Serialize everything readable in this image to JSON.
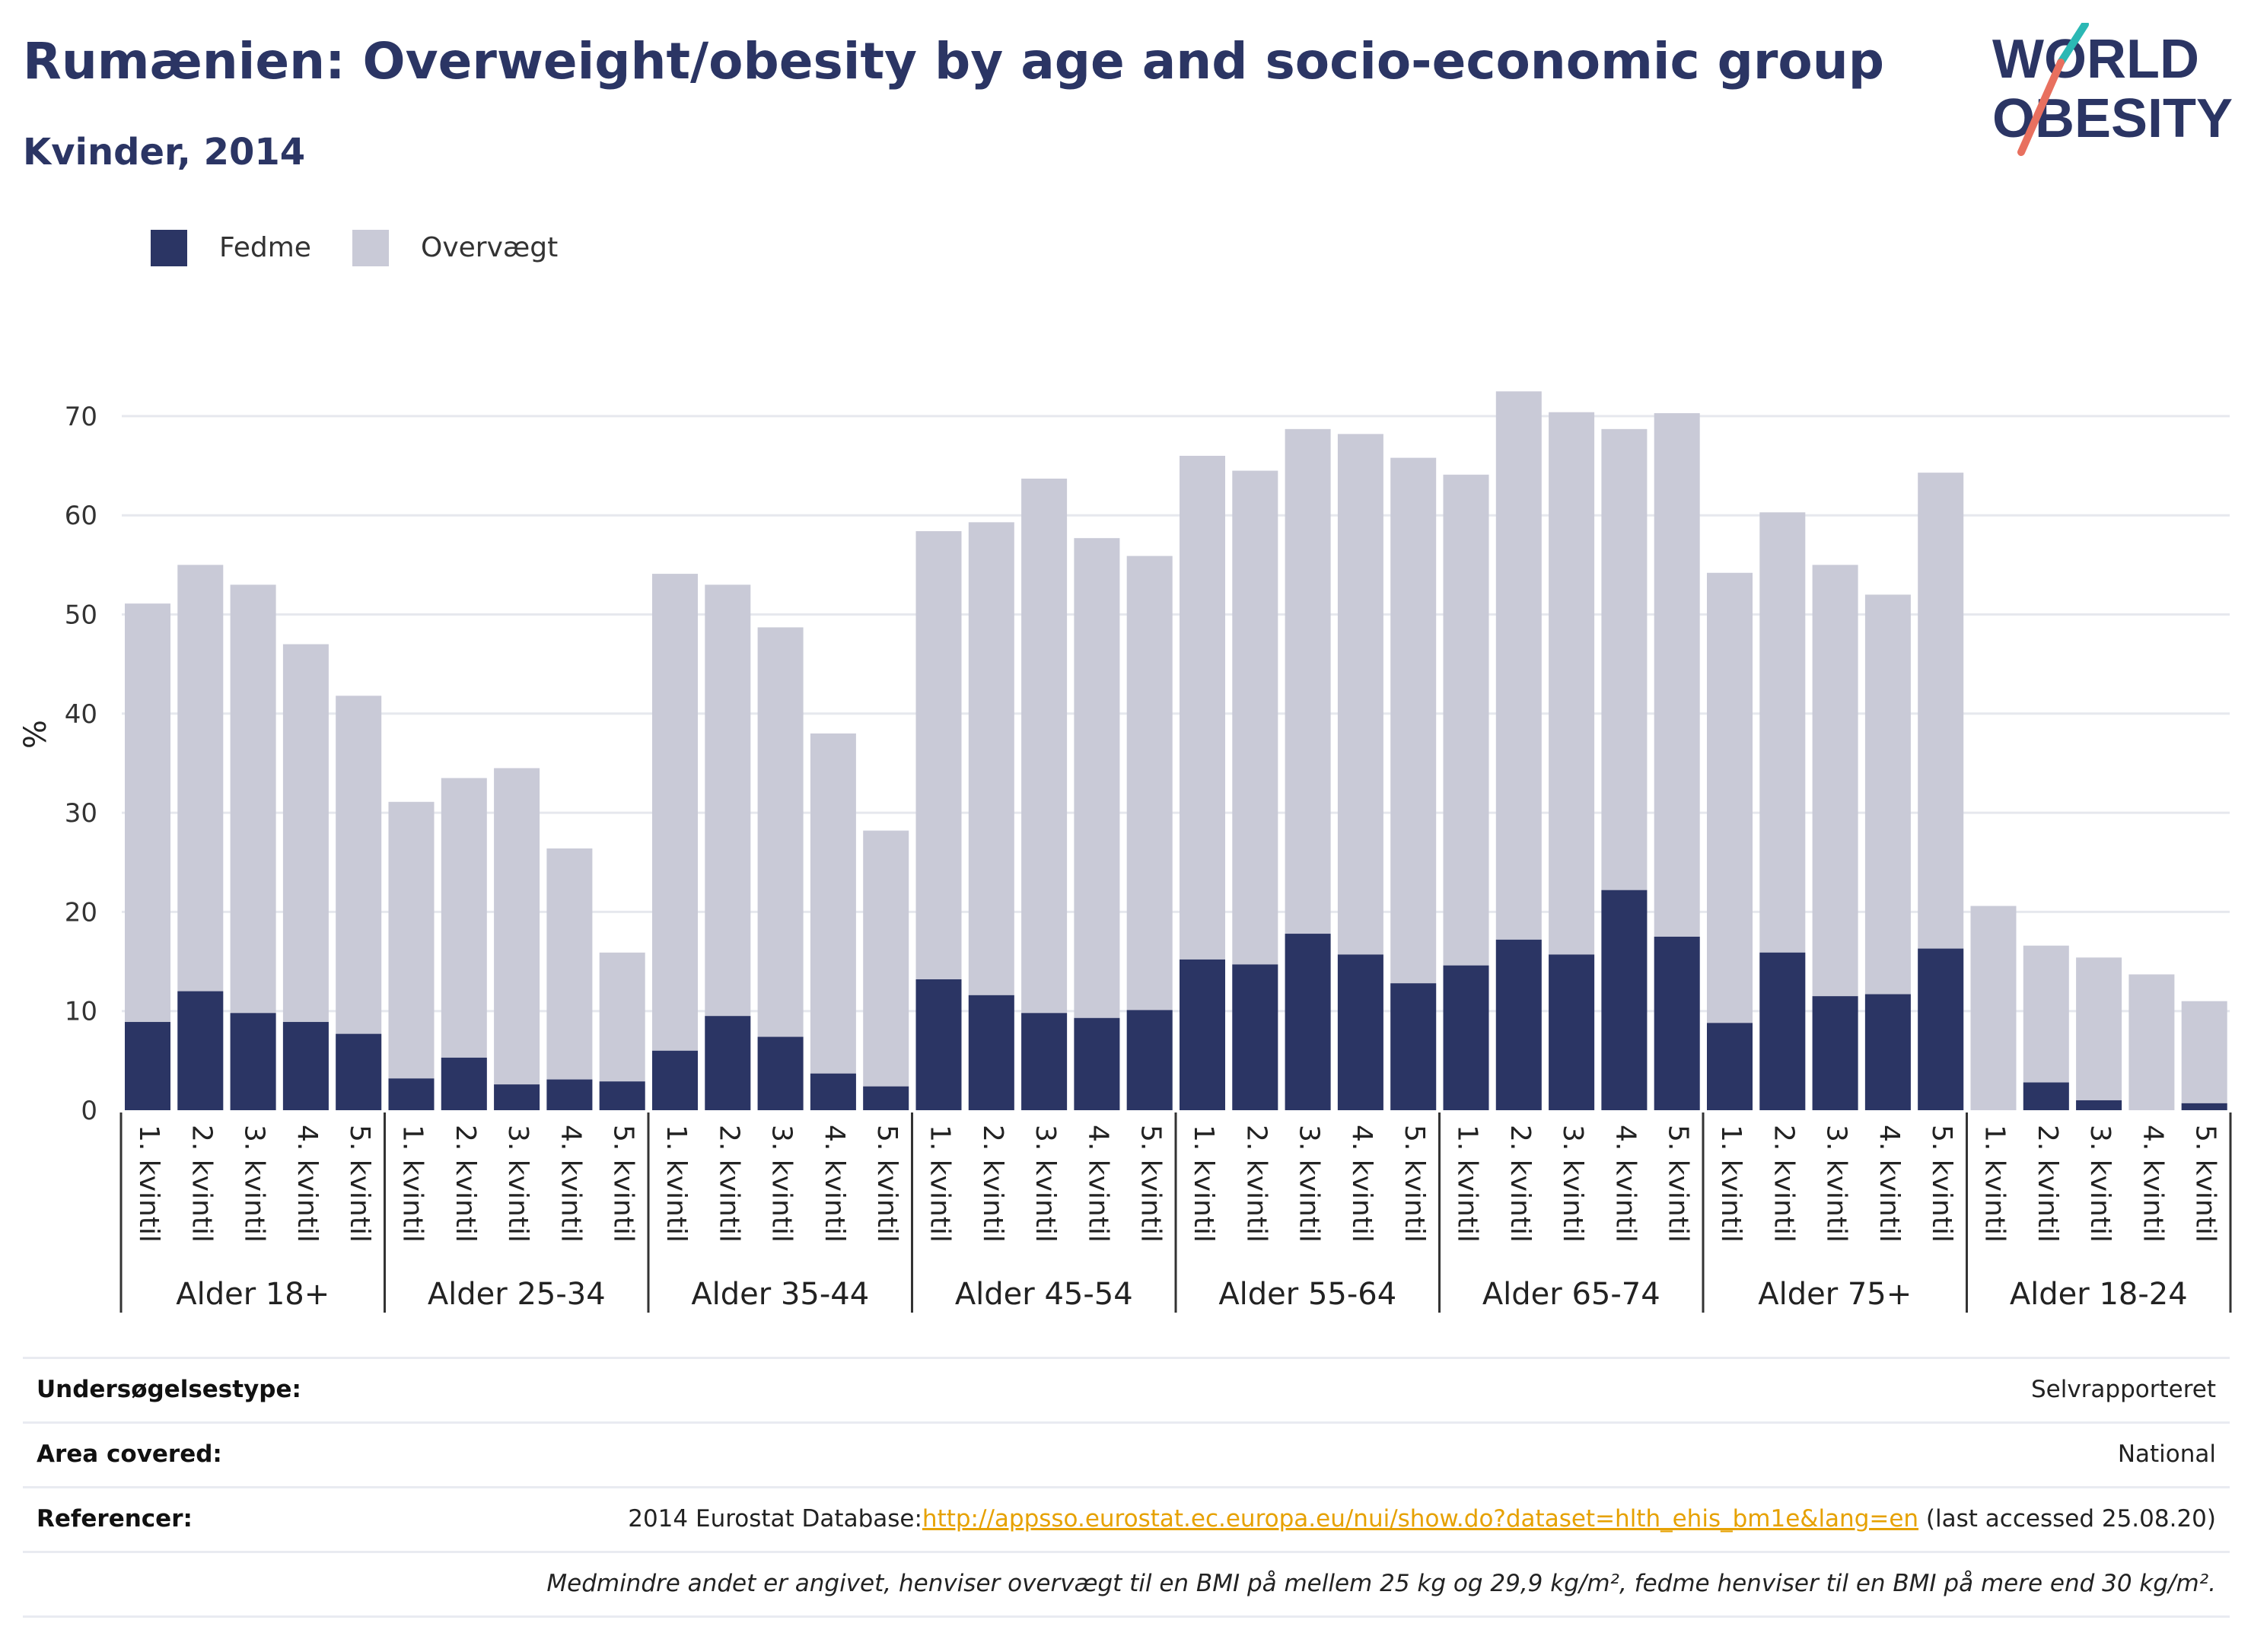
{
  "header": {
    "title": "Rumænien: Overweight/obesity by age and socio-economic group",
    "subtitle": "Kvinder, 2014"
  },
  "logo": {
    "line1": "WORLD",
    "line2": "OBESITY"
  },
  "legend": [
    {
      "label": "Fedme",
      "color": "#2b3564"
    },
    {
      "label": "Overvægt",
      "color": "#c9cad7"
    }
  ],
  "chart_data": {
    "type": "bar",
    "stacking": "overlay",
    "ylabel": "%",
    "ylim": [
      0,
      75
    ],
    "yticks": [
      0,
      10,
      20,
      30,
      40,
      50,
      60,
      70
    ],
    "grid": true,
    "legend_position": "top-left",
    "quintiles": [
      "1. kvintil",
      "2. kvintil",
      "3. kvintil",
      "4. kvintil",
      "5. kvintil"
    ],
    "groups": [
      "Alder 18+",
      "Alder 25-34",
      "Alder 35-44",
      "Alder 45-54",
      "Alder 55-64",
      "Alder 65-74",
      "Alder 75+",
      "Alder 18-24"
    ],
    "series": [
      {
        "name": "Fedme",
        "color": "#2b3564",
        "values": [
          [
            8.9,
            12.0,
            9.8,
            8.9,
            7.7
          ],
          [
            3.2,
            5.3,
            2.6,
            3.1,
            2.9
          ],
          [
            6.0,
            9.5,
            7.4,
            3.7,
            2.4
          ],
          [
            13.2,
            11.6,
            9.8,
            9.3,
            10.1
          ],
          [
            15.2,
            14.7,
            17.8,
            15.7,
            12.8
          ],
          [
            14.6,
            17.2,
            15.7,
            22.2,
            17.5
          ],
          [
            8.8,
            15.9,
            11.5,
            11.7,
            16.3
          ],
          [
            0,
            2.8,
            1.0,
            0,
            0.7
          ]
        ]
      },
      {
        "name": "Overvægt",
        "color": "#c9cad7",
        "values": [
          [
            51.1,
            55.0,
            53.0,
            47.0,
            41.8
          ],
          [
            31.1,
            33.5,
            34.5,
            26.4,
            15.9
          ],
          [
            54.1,
            53.0,
            48.7,
            38.0,
            28.2
          ],
          [
            58.4,
            59.3,
            63.7,
            57.7,
            55.9
          ],
          [
            66.0,
            64.5,
            68.7,
            68.2,
            65.8
          ],
          [
            64.1,
            72.5,
            70.4,
            68.7,
            70.3
          ],
          [
            54.2,
            60.3,
            55.0,
            52.0,
            64.3
          ],
          [
            20.6,
            16.6,
            15.4,
            13.7,
            11.0
          ]
        ]
      }
    ]
  },
  "info": {
    "rows": [
      {
        "label": "Undersøgelsestype:",
        "value": "Selvrapporteret"
      },
      {
        "label": "Area covered:",
        "value": "National"
      }
    ],
    "references": {
      "label": "Referencer:",
      "prefix": "2014 Eurostat Database:",
      "link": "http://appsso.eurostat.ec.europa.eu/nui/show.do?dataset=hlth_ehis_bm1e&lang=en",
      "suffix": " (last accessed 25.08.20)"
    },
    "note": "Medmindre andet er angivet, henviser overvægt til en BMI på mellem 25 kg og 29,9 kg/m², fedme henviser til en BMI på mere end 30 kg/m²."
  }
}
